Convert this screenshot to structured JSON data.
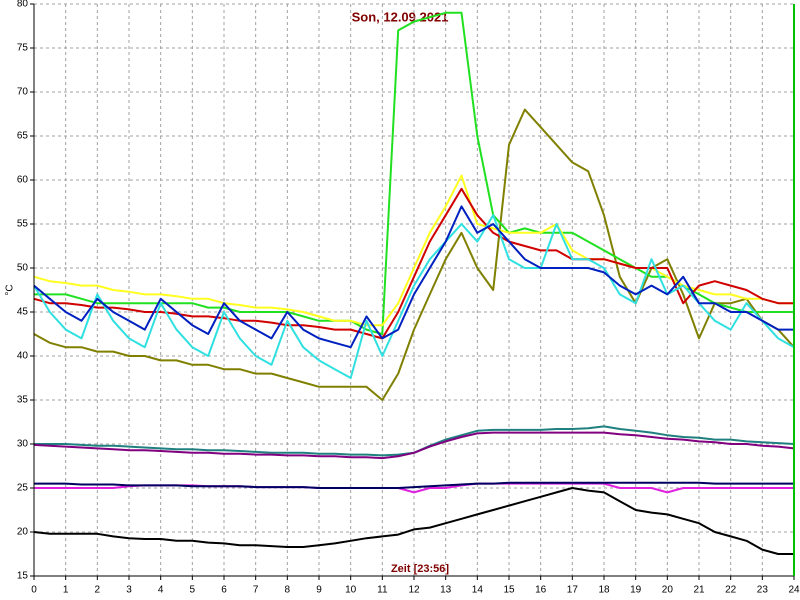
{
  "chart_data": {
    "type": "line",
    "title": "Son, 12.09.2021",
    "xlabel": "Zeit [23:56]",
    "ylabel": "°C",
    "x": [
      0,
      0.5,
      1,
      1.5,
      2,
      2.5,
      3,
      3.5,
      4,
      4.5,
      5,
      5.5,
      6,
      6.5,
      7,
      7.5,
      8,
      8.5,
      9,
      9.5,
      10,
      10.5,
      11,
      11.5,
      12,
      12.5,
      13,
      13.5,
      14,
      14.5,
      15,
      15.5,
      16,
      16.5,
      17,
      17.5,
      18,
      18.5,
      19,
      19.5,
      20,
      20.5,
      21,
      21.5,
      22,
      22.5,
      23,
      23.5,
      24
    ],
    "xlim": [
      0,
      24
    ],
    "xticks": [
      0,
      1,
      2,
      3,
      4,
      5,
      6,
      7,
      8,
      9,
      10,
      11,
      12,
      13,
      14,
      15,
      16,
      17,
      18,
      19,
      20,
      21,
      22,
      23,
      24
    ],
    "ylim": [
      15,
      80
    ],
    "yticks": [
      15,
      20,
      25,
      30,
      35,
      40,
      45,
      50,
      55,
      60,
      65,
      70,
      75,
      80
    ],
    "grid": true,
    "series": [
      {
        "color": "#000000",
        "values": [
          20,
          19.8,
          19.8,
          19.8,
          19.8,
          19.5,
          19.3,
          19.2,
          19.2,
          19,
          19,
          18.8,
          18.7,
          18.5,
          18.5,
          18.4,
          18.3,
          18.3,
          18.5,
          18.7,
          19,
          19.3,
          19.5,
          19.7,
          20.3,
          20.5,
          21,
          21.5,
          22,
          22.5,
          23,
          23.5,
          24,
          24.5,
          25,
          24.7,
          24.5,
          23.5,
          22.5,
          22.2,
          22,
          21.5,
          21,
          20,
          19.5,
          19,
          18,
          17.5,
          17.5
        ]
      },
      {
        "color": "#e020e0",
        "values": [
          25,
          25,
          25,
          25,
          25,
          25,
          25.2,
          25.3,
          25.3,
          25.3,
          25.3,
          25.2,
          25.2,
          25.2,
          25.1,
          25.1,
          25.1,
          25.1,
          25,
          25,
          25,
          25,
          25,
          25,
          24.5,
          25,
          25,
          25.3,
          25.5,
          25.5,
          25.5,
          25.5,
          25.5,
          25.5,
          25.5,
          25.5,
          25.5,
          25,
          25,
          25,
          24.5,
          25,
          25,
          25,
          25,
          25,
          25,
          25,
          25
        ]
      },
      {
        "color": "#000060",
        "values": [
          25.5,
          25.5,
          25.5,
          25.4,
          25.4,
          25.4,
          25.3,
          25.3,
          25.3,
          25.3,
          25.2,
          25.2,
          25.2,
          25.2,
          25.1,
          25.1,
          25.1,
          25.1,
          25,
          25,
          25,
          25,
          25,
          25,
          25.1,
          25.2,
          25.3,
          25.4,
          25.5,
          25.5,
          25.6,
          25.6,
          25.6,
          25.6,
          25.6,
          25.6,
          25.6,
          25.6,
          25.6,
          25.6,
          25.6,
          25.6,
          25.6,
          25.5,
          25.5,
          25.5,
          25.5,
          25.5,
          25.5
        ]
      },
      {
        "color": "#208080",
        "values": [
          30,
          30,
          30,
          29.9,
          29.8,
          29.8,
          29.7,
          29.6,
          29.5,
          29.4,
          29.4,
          29.3,
          29.3,
          29.2,
          29.1,
          29,
          29,
          29,
          28.9,
          28.9,
          28.8,
          28.8,
          28.7,
          28.8,
          29,
          29.8,
          30.5,
          31,
          31.5,
          31.6,
          31.6,
          31.6,
          31.6,
          31.7,
          31.7,
          31.8,
          32,
          31.7,
          31.5,
          31.3,
          31,
          30.8,
          30.7,
          30.5,
          30.5,
          30.3,
          30.2,
          30.1,
          30
        ]
      },
      {
        "color": "#800080",
        "values": [
          29.9,
          29.8,
          29.7,
          29.6,
          29.5,
          29.4,
          29.3,
          29.3,
          29.2,
          29.1,
          29,
          29,
          28.9,
          28.9,
          28.8,
          28.8,
          28.7,
          28.7,
          28.6,
          28.6,
          28.5,
          28.5,
          28.4,
          28.6,
          29,
          29.7,
          30.3,
          30.8,
          31.2,
          31.3,
          31.3,
          31.3,
          31.3,
          31.3,
          31.3,
          31.3,
          31.3,
          31.1,
          31,
          30.8,
          30.6,
          30.5,
          30.3,
          30.2,
          30,
          30,
          29.8,
          29.7,
          29.5
        ]
      },
      {
        "color": "#808000",
        "values": [
          42.5,
          41.5,
          41,
          41,
          40.5,
          40.5,
          40,
          40,
          39.5,
          39.5,
          39,
          39,
          38.5,
          38.5,
          38,
          38,
          37.5,
          37,
          36.5,
          36.5,
          36.5,
          36.5,
          35,
          38,
          43,
          47,
          51,
          54,
          50,
          47.5,
          64,
          68,
          66,
          64,
          62,
          61,
          56,
          49,
          46,
          50,
          51,
          47,
          42,
          46,
          46,
          46.5,
          44,
          43,
          41
        ]
      },
      {
        "color": "#20e020",
        "values": [
          47,
          47,
          47,
          46.5,
          46,
          46,
          46,
          46,
          46,
          46,
          46,
          45.5,
          45.5,
          45,
          45,
          45,
          45,
          44.5,
          44,
          44,
          44,
          43,
          42.5,
          77,
          78,
          78.5,
          79,
          79,
          65,
          56,
          54,
          54.5,
          54,
          54,
          54,
          53,
          52,
          51,
          50,
          49,
          49,
          48,
          47,
          46,
          45.5,
          45,
          45,
          45,
          45
        ]
      },
      {
        "color": "#ffff20",
        "values": [
          49,
          48.5,
          48.3,
          48,
          48,
          47.5,
          47.3,
          47,
          47,
          46.8,
          46.5,
          46.5,
          46,
          45.8,
          45.5,
          45.5,
          45.3,
          45,
          44.5,
          44,
          44,
          43.5,
          43.5,
          46,
          50,
          54,
          57,
          60.5,
          55,
          54.5,
          54,
          54,
          54,
          55,
          52,
          51,
          51,
          50.5,
          50,
          50,
          49,
          48,
          47.5,
          47,
          47,
          46.5,
          46.5,
          46,
          46
        ]
      },
      {
        "color": "#d00000",
        "values": [
          46.5,
          46,
          46,
          45.8,
          45.5,
          45.5,
          45.3,
          45,
          45,
          44.8,
          44.5,
          44.5,
          44.3,
          44,
          44,
          43.8,
          43.5,
          43.5,
          43.3,
          43,
          43,
          42.5,
          42,
          45,
          49,
          53,
          56,
          59,
          56,
          54,
          53,
          52.5,
          52,
          52,
          51,
          51,
          51,
          50.5,
          50,
          50,
          50,
          46,
          48,
          48.5,
          48,
          47.5,
          46.5,
          46,
          46
        ]
      },
      {
        "color": "#30e0e0",
        "values": [
          48,
          45,
          43,
          42,
          47,
          44,
          42,
          41,
          46,
          43,
          41,
          40,
          45,
          42,
          40,
          39,
          44,
          41,
          39.5,
          38.5,
          37.5,
          44,
          40,
          44,
          48,
          51,
          53,
          55,
          53,
          56,
          51,
          50,
          50,
          55,
          51,
          51,
          50,
          47,
          46,
          51,
          47,
          48,
          46,
          44,
          43,
          46,
          44,
          42,
          41
        ]
      },
      {
        "color": "#0020c0",
        "values": [
          48,
          46.5,
          45,
          44,
          46.5,
          45,
          44,
          43,
          46.5,
          45,
          43.5,
          42.5,
          46,
          44,
          43,
          42,
          45,
          43,
          42,
          41.5,
          41,
          44.5,
          42,
          43,
          47,
          50,
          53,
          57,
          54,
          55,
          53,
          51,
          50,
          50,
          50,
          50,
          49.5,
          48,
          47,
          48,
          47,
          49,
          46,
          46,
          45,
          45,
          44,
          43,
          43
        ]
      }
    ]
  }
}
